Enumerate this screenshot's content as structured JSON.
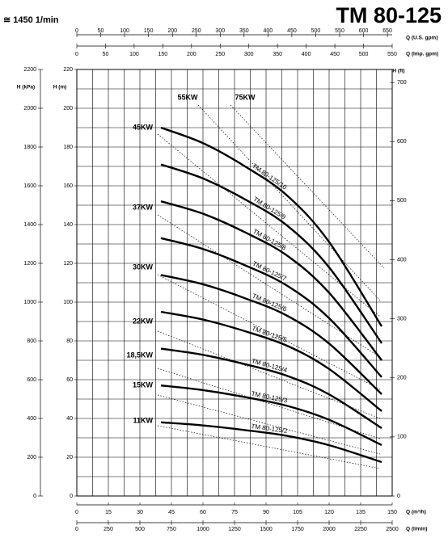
{
  "chart_data": {
    "type": "line",
    "title": "TM 80-125",
    "subtitle": "≅ 1450 1/min",
    "xlabel": "Q (m³/h)",
    "ylabel": "H (m)",
    "x": [
      40,
      60,
      80,
      100,
      120,
      145
    ],
    "xlim": [
      0,
      150
    ],
    "xticks": [
      0,
      15,
      30,
      45,
      60,
      75,
      90,
      105,
      120,
      135,
      150
    ],
    "ylim": [
      0,
      220
    ],
    "yticks": [
      0,
      20,
      40,
      60,
      80,
      100,
      120,
      140,
      160,
      180,
      200,
      220
    ],
    "grid": true,
    "xgrid": [
      0,
      7.5,
      15,
      22.5,
      30,
      37.5,
      45,
      52.5,
      60,
      67.5,
      75,
      82.5,
      90,
      97.5,
      105,
      112.5,
      120,
      127.5,
      135,
      142.5,
      150
    ],
    "ygrid": [
      0,
      10,
      20,
      30,
      40,
      50,
      60,
      70,
      80,
      90,
      100,
      110,
      120,
      130,
      140,
      150,
      160,
      170,
      180,
      190,
      200,
      210,
      220
    ],
    "series": [
      {
        "name": "TM 80-125/2",
        "color": "#000000",
        "values": [
          38,
          36.4,
          34,
          31,
          26.2,
          17.5
        ]
      },
      {
        "name": "TM 80-125/3",
        "color": "#000000",
        "values": [
          57,
          54.6,
          51,
          46.5,
          39.3,
          26.3
        ]
      },
      {
        "name": "TM 80-125/4",
        "color": "#000000",
        "values": [
          76,
          72.8,
          68,
          62,
          52.4,
          35
        ]
      },
      {
        "name": "TM 80-125/5",
        "color": "#000000",
        "values": [
          95,
          91,
          85,
          77.5,
          65.5,
          43.8
        ]
      },
      {
        "name": "TM 80-125/6",
        "color": "#000000",
        "values": [
          114,
          109.2,
          102,
          93,
          78.6,
          52.5
        ]
      },
      {
        "name": "TM 80-125/7",
        "color": "#000000",
        "values": [
          133,
          127.4,
          119,
          108.5,
          91.7,
          61.3
        ]
      },
      {
        "name": "TM 80-125/8",
        "color": "#000000",
        "values": [
          152,
          145.6,
          136,
          124,
          104.8,
          70
        ]
      },
      {
        "name": "TM 80-125/9",
        "color": "#000000",
        "values": [
          171,
          163.8,
          153,
          139.5,
          117.9,
          78.8
        ]
      },
      {
        "name": "TM 80-125/10",
        "color": "#000000",
        "values": [
          190,
          182,
          170,
          155,
          131,
          87.5
        ]
      }
    ],
    "power_labels": [
      "11KW",
      "15KW",
      "18,5KW",
      "22KW",
      "30KW",
      "37KW",
      "45KW",
      "55KW",
      "75KW"
    ],
    "axes": [
      {
        "label": "H (kPa)",
        "side": "left",
        "lim": [
          0,
          2200
        ],
        "ticks": [
          0,
          200,
          400,
          600,
          800,
          1000,
          1200,
          1400,
          1600,
          1800,
          2000,
          2200
        ]
      },
      {
        "label": "H (ft)",
        "side": "right",
        "lim": [
          0,
          722
        ],
        "ticks": [
          0,
          100,
          200,
          300,
          400,
          500,
          600,
          700
        ]
      },
      {
        "label": "Q (U.S. gpm)",
        "side": "top",
        "lim": [
          0,
          660
        ],
        "ticks": [
          0,
          50,
          100,
          150,
          200,
          250,
          300,
          350,
          400,
          450,
          500,
          550,
          600,
          650
        ]
      },
      {
        "label": "Q (Imp. gpm)",
        "side": "top",
        "lim": [
          0,
          550
        ],
        "ticks": [
          0,
          50,
          100,
          150,
          200,
          250,
          300,
          350,
          400,
          450,
          500,
          550
        ]
      },
      {
        "label": "Q (l/min)",
        "side": "bottom",
        "lim": [
          0,
          2500
        ],
        "ticks": [
          0,
          250,
          500,
          750,
          1000,
          1250,
          1500,
          1750,
          2000,
          2250,
          2500
        ]
      }
    ]
  }
}
